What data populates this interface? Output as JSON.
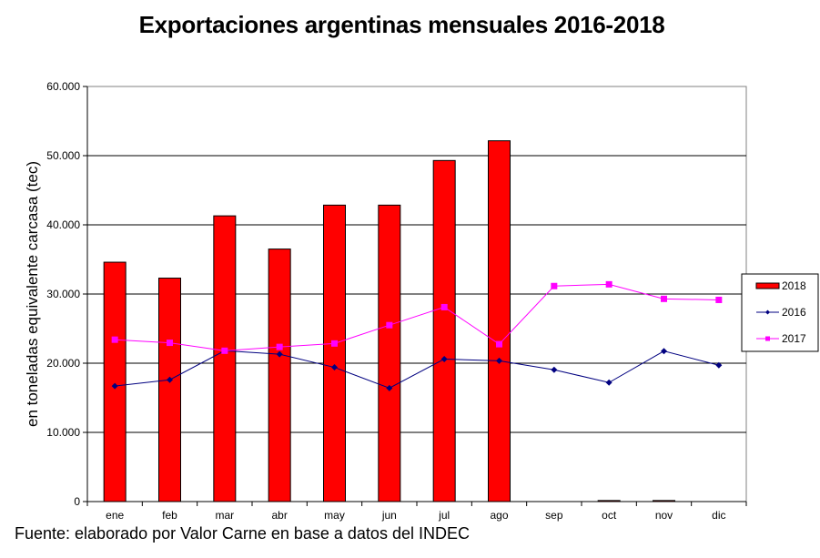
{
  "chart_data": {
    "type": "bar",
    "title": "Exportaciones argentinas mensuales 2016-2018",
    "xlabel": "",
    "ylabel": "en toneladas equivalente carcasa (tec)",
    "ylim": [
      0,
      60000
    ],
    "yticks": [
      0,
      10000,
      20000,
      30000,
      40000,
      50000,
      60000
    ],
    "ytick_labels": [
      "0",
      "10.000",
      "20.000",
      "30.000",
      "40.000",
      "50.000",
      "60.000"
    ],
    "grid": true,
    "legend_position": "right",
    "categories": [
      "ene",
      "feb",
      "mar",
      "abr",
      "may",
      "jun",
      "jul",
      "ago",
      "sep",
      "oct",
      "nov",
      "dic"
    ],
    "series": [
      {
        "name": "2018",
        "kind": "bar",
        "color": "#ff0000",
        "values": [
          34600,
          32300,
          41300,
          36500,
          42850,
          42850,
          49300,
          52150,
          0,
          150,
          150,
          0
        ]
      },
      {
        "name": "2016",
        "kind": "line",
        "marker": "diamond",
        "color": "#000080",
        "values": [
          16700,
          17600,
          21800,
          21300,
          19400,
          16400,
          20600,
          20350,
          19050,
          17200,
          21750,
          19700
        ]
      },
      {
        "name": "2017",
        "kind": "line",
        "marker": "square",
        "color": "#ff00ff",
        "values": [
          23400,
          22950,
          21800,
          22350,
          22850,
          25500,
          28100,
          22750,
          31150,
          31400,
          29300,
          29150
        ]
      }
    ],
    "legend_order": [
      "2018",
      "2016",
      "2017"
    ]
  },
  "source_note": "Fuente: elaborado por  Valor Carne en base a datos del INDEC"
}
